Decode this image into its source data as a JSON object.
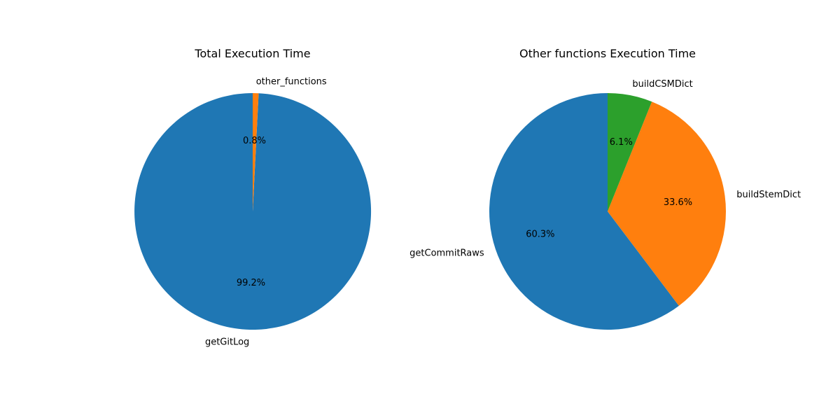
{
  "chart_data": [
    {
      "type": "pie",
      "title": "Total Execution Time",
      "slices": [
        {
          "label": "getGitLog",
          "value": 99.2,
          "pct_label": "99.2%",
          "color": "#1f77b4"
        },
        {
          "label": "other_functions",
          "value": 0.8,
          "pct_label": "0.8%",
          "color": "#ff7f0e"
        }
      ]
    },
    {
      "type": "pie",
      "title": "Other functions Execution Time",
      "slices": [
        {
          "label": "getCommitRaws",
          "value": 60.3,
          "pct_label": "60.3%",
          "color": "#1f77b4"
        },
        {
          "label": "buildStemDict",
          "value": 33.6,
          "pct_label": "33.6%",
          "color": "#ff7f0e"
        },
        {
          "label": "buildCSMDict",
          "value": 6.1,
          "pct_label": "6.1%",
          "color": "#2ca02c"
        }
      ]
    }
  ]
}
